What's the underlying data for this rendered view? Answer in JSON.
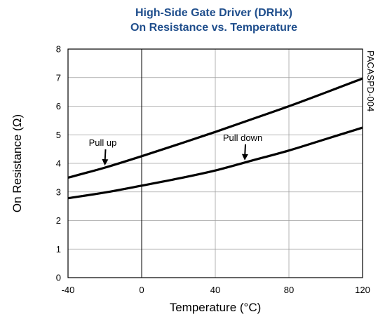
{
  "chart_data": {
    "type": "line",
    "title_line1": "High-Side Gate Driver (DRHx)",
    "title_line2": "On Resistance vs. Temperature",
    "xlabel": "Temperature (°C)",
    "ylabel": "On Resistance (Ω)",
    "xlim": [
      -40,
      120
    ],
    "ylim": [
      0,
      8
    ],
    "x_ticks": [
      -40,
      0,
      40,
      80,
      120
    ],
    "x_tick_labels": [
      "-40",
      "0",
      "40",
      "80",
      "120"
    ],
    "y_ticks": [
      0,
      1,
      2,
      3,
      4,
      5,
      6,
      7,
      8
    ],
    "y_tick_labels": [
      "0",
      "1",
      "2",
      "3",
      "4",
      "5",
      "6",
      "7",
      "8"
    ],
    "grid": true,
    "series": [
      {
        "name": "Pull up",
        "x": [
          -40,
          -20,
          0,
          20,
          40,
          60,
          80,
          100,
          120
        ],
        "y": [
          3.5,
          3.85,
          4.25,
          4.67,
          5.1,
          5.55,
          6.0,
          6.48,
          6.97
        ]
      },
      {
        "name": "Pull down",
        "x": [
          -40,
          -20,
          0,
          20,
          40,
          60,
          80,
          100,
          120
        ],
        "y": [
          2.78,
          2.98,
          3.22,
          3.47,
          3.75,
          4.1,
          4.45,
          4.85,
          5.25
        ]
      }
    ],
    "annotations": [
      {
        "text": "Pull up",
        "series": 0,
        "target_x": -20
      },
      {
        "text": "Pull down",
        "series": 1,
        "target_x": 56
      }
    ],
    "side_code": "PACASPD-004",
    "colors": {
      "title": "#1f4e8c",
      "series": "#000000",
      "grid": "#a0a0a0"
    }
  }
}
